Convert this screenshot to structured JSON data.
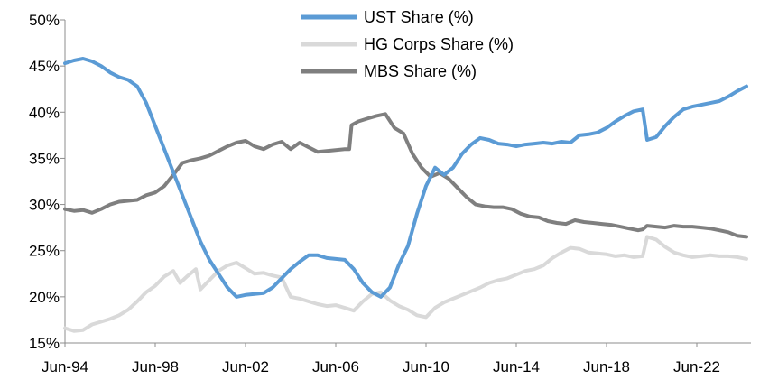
{
  "chart_data": {
    "type": "line",
    "title": "",
    "xlabel": "",
    "ylabel": "",
    "ylim": [
      15,
      50
    ],
    "y_ticks": [
      15,
      20,
      25,
      30,
      35,
      40,
      45,
      50
    ],
    "y_tick_format": "{v}%",
    "xlim": [
      1994.4,
      2024.8
    ],
    "x_ticks": [
      {
        "value": 1994.4,
        "label": "Jun-94"
      },
      {
        "value": 1998.4,
        "label": "Jun-98"
      },
      {
        "value": 2002.4,
        "label": "Jun-02"
      },
      {
        "value": 2006.4,
        "label": "Jun-06"
      },
      {
        "value": 2010.4,
        "label": "Jun-10"
      },
      {
        "value": 2014.4,
        "label": "Jun-14"
      },
      {
        "value": 2018.4,
        "label": "Jun-18"
      },
      {
        "value": 2022.4,
        "label": "Jun-22"
      }
    ],
    "grid": false,
    "legend": "top-center",
    "series": [
      {
        "name": "UST Share (%)",
        "color": "#5b9bd5",
        "points": [
          [
            1994.4,
            45.3
          ],
          [
            1994.8,
            45.6
          ],
          [
            1995.2,
            45.8
          ],
          [
            1995.6,
            45.5
          ],
          [
            1996.0,
            45.0
          ],
          [
            1996.4,
            44.3
          ],
          [
            1996.8,
            43.8
          ],
          [
            1997.2,
            43.5
          ],
          [
            1997.6,
            42.8
          ],
          [
            1998.0,
            41.0
          ],
          [
            1998.4,
            38.5
          ],
          [
            1998.8,
            36.0
          ],
          [
            1999.2,
            33.5
          ],
          [
            1999.6,
            31.0
          ],
          [
            2000.0,
            28.5
          ],
          [
            2000.4,
            26.0
          ],
          [
            2000.8,
            24.0
          ],
          [
            2001.2,
            22.5
          ],
          [
            2001.6,
            21.0
          ],
          [
            2002.0,
            20.0
          ],
          [
            2002.4,
            20.2
          ],
          [
            2002.8,
            20.3
          ],
          [
            2003.2,
            20.4
          ],
          [
            2003.6,
            21.0
          ],
          [
            2004.0,
            22.0
          ],
          [
            2004.4,
            23.0
          ],
          [
            2004.8,
            23.8
          ],
          [
            2005.2,
            24.5
          ],
          [
            2005.6,
            24.5
          ],
          [
            2006.0,
            24.2
          ],
          [
            2006.4,
            24.1
          ],
          [
            2006.8,
            24.0
          ],
          [
            2007.2,
            23.0
          ],
          [
            2007.6,
            21.5
          ],
          [
            2008.0,
            20.5
          ],
          [
            2008.4,
            20.0
          ],
          [
            2008.8,
            21.0
          ],
          [
            2009.2,
            23.5
          ],
          [
            2009.6,
            25.5
          ],
          [
            2010.0,
            29.0
          ],
          [
            2010.4,
            32.0
          ],
          [
            2010.8,
            34.0
          ],
          [
            2011.2,
            33.2
          ],
          [
            2011.6,
            34.0
          ],
          [
            2012.0,
            35.5
          ],
          [
            2012.4,
            36.5
          ],
          [
            2012.8,
            37.2
          ],
          [
            2013.2,
            37.0
          ],
          [
            2013.6,
            36.6
          ],
          [
            2014.0,
            36.5
          ],
          [
            2014.4,
            36.3
          ],
          [
            2014.8,
            36.5
          ],
          [
            2015.2,
            36.6
          ],
          [
            2015.6,
            36.7
          ],
          [
            2016.0,
            36.6
          ],
          [
            2016.4,
            36.8
          ],
          [
            2016.8,
            36.7
          ],
          [
            2017.2,
            37.5
          ],
          [
            2017.6,
            37.6
          ],
          [
            2018.0,
            37.8
          ],
          [
            2018.4,
            38.3
          ],
          [
            2018.8,
            39.0
          ],
          [
            2019.2,
            39.6
          ],
          [
            2019.6,
            40.1
          ],
          [
            2020.0,
            40.3
          ],
          [
            2020.2,
            37.0
          ],
          [
            2020.6,
            37.3
          ],
          [
            2021.0,
            38.5
          ],
          [
            2021.4,
            39.5
          ],
          [
            2021.8,
            40.3
          ],
          [
            2022.2,
            40.6
          ],
          [
            2022.6,
            40.8
          ],
          [
            2023.0,
            41.0
          ],
          [
            2023.4,
            41.2
          ],
          [
            2023.8,
            41.7
          ],
          [
            2024.2,
            42.3
          ],
          [
            2024.6,
            42.8
          ]
        ]
      },
      {
        "name": "HG Corps Share (%)",
        "color": "#d9d9d9",
        "points": [
          [
            1994.4,
            16.6
          ],
          [
            1994.8,
            16.3
          ],
          [
            1995.2,
            16.4
          ],
          [
            1995.6,
            17.0
          ],
          [
            1996.0,
            17.3
          ],
          [
            1996.4,
            17.6
          ],
          [
            1996.8,
            18.0
          ],
          [
            1997.2,
            18.6
          ],
          [
            1997.6,
            19.5
          ],
          [
            1998.0,
            20.5
          ],
          [
            1998.4,
            21.2
          ],
          [
            1998.8,
            22.2
          ],
          [
            1999.2,
            22.8
          ],
          [
            1999.5,
            21.5
          ],
          [
            1999.8,
            22.2
          ],
          [
            2000.2,
            23.0
          ],
          [
            2000.4,
            20.8
          ],
          [
            2000.8,
            21.8
          ],
          [
            2001.2,
            22.8
          ],
          [
            2001.6,
            23.4
          ],
          [
            2002.0,
            23.7
          ],
          [
            2002.4,
            23.1
          ],
          [
            2002.8,
            22.5
          ],
          [
            2003.2,
            22.6
          ],
          [
            2003.6,
            22.3
          ],
          [
            2004.0,
            22.1
          ],
          [
            2004.4,
            20.0
          ],
          [
            2004.8,
            19.8
          ],
          [
            2005.2,
            19.5
          ],
          [
            2005.6,
            19.2
          ],
          [
            2006.0,
            19.0
          ],
          [
            2006.4,
            19.1
          ],
          [
            2006.8,
            18.8
          ],
          [
            2007.2,
            18.5
          ],
          [
            2007.6,
            19.5
          ],
          [
            2008.0,
            20.3
          ],
          [
            2008.4,
            20.5
          ],
          [
            2008.8,
            19.6
          ],
          [
            2009.2,
            19.0
          ],
          [
            2009.6,
            18.6
          ],
          [
            2010.0,
            18.0
          ],
          [
            2010.4,
            17.8
          ],
          [
            2010.8,
            18.8
          ],
          [
            2011.2,
            19.4
          ],
          [
            2011.6,
            19.8
          ],
          [
            2012.0,
            20.2
          ],
          [
            2012.4,
            20.6
          ],
          [
            2012.8,
            21.0
          ],
          [
            2013.2,
            21.5
          ],
          [
            2013.6,
            21.8
          ],
          [
            2014.0,
            22.0
          ],
          [
            2014.4,
            22.4
          ],
          [
            2014.8,
            22.8
          ],
          [
            2015.2,
            23.0
          ],
          [
            2015.6,
            23.4
          ],
          [
            2016.0,
            24.2
          ],
          [
            2016.4,
            24.8
          ],
          [
            2016.8,
            25.3
          ],
          [
            2017.2,
            25.2
          ],
          [
            2017.6,
            24.8
          ],
          [
            2018.0,
            24.7
          ],
          [
            2018.4,
            24.6
          ],
          [
            2018.8,
            24.4
          ],
          [
            2019.2,
            24.5
          ],
          [
            2019.6,
            24.3
          ],
          [
            2020.0,
            24.4
          ],
          [
            2020.2,
            26.5
          ],
          [
            2020.6,
            26.2
          ],
          [
            2021.0,
            25.4
          ],
          [
            2021.4,
            24.8
          ],
          [
            2021.8,
            24.5
          ],
          [
            2022.2,
            24.3
          ],
          [
            2022.6,
            24.4
          ],
          [
            2023.0,
            24.5
          ],
          [
            2023.4,
            24.4
          ],
          [
            2023.8,
            24.4
          ],
          [
            2024.2,
            24.3
          ],
          [
            2024.6,
            24.1
          ]
        ]
      },
      {
        "name": "MBS Share (%)",
        "color": "#7f7f7f",
        "points": [
          [
            1994.4,
            29.5
          ],
          [
            1994.8,
            29.3
          ],
          [
            1995.2,
            29.4
          ],
          [
            1995.6,
            29.1
          ],
          [
            1996.0,
            29.5
          ],
          [
            1996.4,
            30.0
          ],
          [
            1996.8,
            30.3
          ],
          [
            1997.2,
            30.4
          ],
          [
            1997.6,
            30.5
          ],
          [
            1998.0,
            31.0
          ],
          [
            1998.4,
            31.3
          ],
          [
            1998.8,
            32.0
          ],
          [
            1999.2,
            33.2
          ],
          [
            1999.6,
            34.5
          ],
          [
            2000.0,
            34.8
          ],
          [
            2000.4,
            35.0
          ],
          [
            2000.8,
            35.3
          ],
          [
            2001.2,
            35.8
          ],
          [
            2001.6,
            36.3
          ],
          [
            2002.0,
            36.7
          ],
          [
            2002.4,
            36.9
          ],
          [
            2002.8,
            36.3
          ],
          [
            2003.2,
            36.0
          ],
          [
            2003.6,
            36.5
          ],
          [
            2004.0,
            36.8
          ],
          [
            2004.4,
            36.0
          ],
          [
            2004.8,
            36.7
          ],
          [
            2005.2,
            36.2
          ],
          [
            2005.6,
            35.7
          ],
          [
            2006.0,
            35.8
          ],
          [
            2006.4,
            35.9
          ],
          [
            2006.8,
            36.0
          ],
          [
            2007.0,
            36.0
          ],
          [
            2007.1,
            38.6
          ],
          [
            2007.4,
            39.0
          ],
          [
            2007.8,
            39.3
          ],
          [
            2008.2,
            39.6
          ],
          [
            2008.6,
            39.8
          ],
          [
            2009.0,
            38.3
          ],
          [
            2009.4,
            37.7
          ],
          [
            2009.8,
            35.5
          ],
          [
            2010.2,
            34.0
          ],
          [
            2010.6,
            33.0
          ],
          [
            2011.0,
            33.4
          ],
          [
            2011.4,
            32.8
          ],
          [
            2011.8,
            31.8
          ],
          [
            2012.2,
            30.8
          ],
          [
            2012.6,
            30.0
          ],
          [
            2013.0,
            29.8
          ],
          [
            2013.4,
            29.7
          ],
          [
            2013.8,
            29.7
          ],
          [
            2014.2,
            29.5
          ],
          [
            2014.6,
            29.0
          ],
          [
            2015.0,
            28.7
          ],
          [
            2015.4,
            28.6
          ],
          [
            2015.8,
            28.2
          ],
          [
            2016.2,
            28.0
          ],
          [
            2016.6,
            27.9
          ],
          [
            2017.0,
            28.3
          ],
          [
            2017.4,
            28.1
          ],
          [
            2017.8,
            28.0
          ],
          [
            2018.2,
            27.9
          ],
          [
            2018.6,
            27.8
          ],
          [
            2019.0,
            27.6
          ],
          [
            2019.4,
            27.4
          ],
          [
            2019.8,
            27.2
          ],
          [
            2020.0,
            27.3
          ],
          [
            2020.2,
            27.7
          ],
          [
            2020.6,
            27.6
          ],
          [
            2021.0,
            27.5
          ],
          [
            2021.4,
            27.7
          ],
          [
            2021.8,
            27.6
          ],
          [
            2022.2,
            27.6
          ],
          [
            2022.6,
            27.5
          ],
          [
            2023.0,
            27.4
          ],
          [
            2023.4,
            27.2
          ],
          [
            2023.8,
            27.0
          ],
          [
            2024.2,
            26.6
          ],
          [
            2024.6,
            26.5
          ]
        ]
      }
    ]
  }
}
